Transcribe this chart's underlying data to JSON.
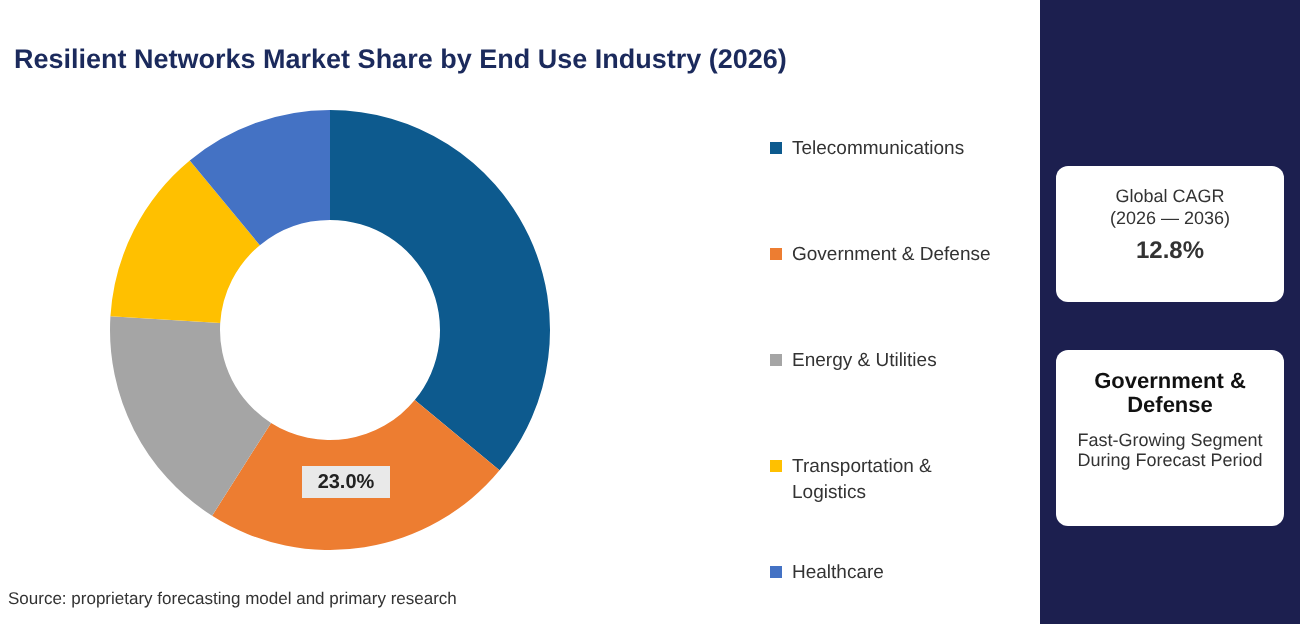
{
  "chart_data": {
    "type": "donut",
    "title": "Resilient Networks Market Share by End Use Industry (2026)",
    "categories": [
      "Telecommunications",
      "Government & Defense",
      "Energy & Utilities",
      "Transportation & Logistics",
      "Healthcare"
    ],
    "values": [
      36,
      23,
      17,
      13,
      11
    ],
    "colors": [
      "#0d5a8e",
      "#ed7d31",
      "#a5a5a5",
      "#ffc000",
      "#4472c4"
    ],
    "value_labels": [
      null,
      "23.0%",
      null,
      null,
      null
    ],
    "legend": "right",
    "annotations": [
      "Source: proprietary forecasting model and primary research",
      "Global CAGR",
      "(2026 — 2036)",
      "12.8%",
      "Government & Defense",
      "Fast-Growing Segment During Forecast Period"
    ]
  }
}
